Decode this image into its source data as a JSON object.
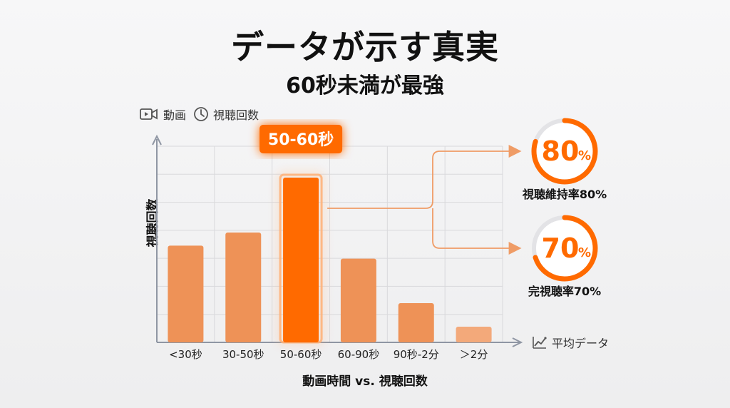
{
  "title": "データが示す真実",
  "subtitle": "60秒未満が最強",
  "legend_top": {
    "video_label": "動画",
    "views_label": "視聴回数",
    "video_icon": "video-camera-icon",
    "views_icon": "clock-icon"
  },
  "legend_bottom": {
    "label": "平均データ",
    "icon": "line-chart-icon"
  },
  "chart_data": {
    "type": "bar",
    "categories": [
      "<30秒",
      "30-50秒",
      "50-60秒",
      "60-90秒",
      "90秒-2分",
      "＞2分"
    ],
    "values": [
      37,
      42,
      63,
      32,
      15,
      6
    ],
    "ylim": [
      0,
      75
    ],
    "highlight_index": 2,
    "highlight_label": "50-60秒",
    "xlabel": "動画時間 vs. 視聴回数",
    "ylabel": "視聴回数",
    "grid": true,
    "colors": {
      "bar": "#ee9257",
      "bar_last": "#f3a97a",
      "highlight": "#ff6a00",
      "grid": "#d9d9dc",
      "axis": "#8f96a3",
      "connector": "#ef9c66"
    }
  },
  "kpis": [
    {
      "value": 80,
      "display": "80",
      "unit": "%",
      "label": "視聴維持率80%"
    },
    {
      "value": 70,
      "display": "70",
      "unit": "%",
      "label": "完視聴率70%"
    }
  ],
  "kpi_colors": {
    "ring": "#ff6a00",
    "track": "#e3e3e6",
    "text": "#ff6a00"
  }
}
